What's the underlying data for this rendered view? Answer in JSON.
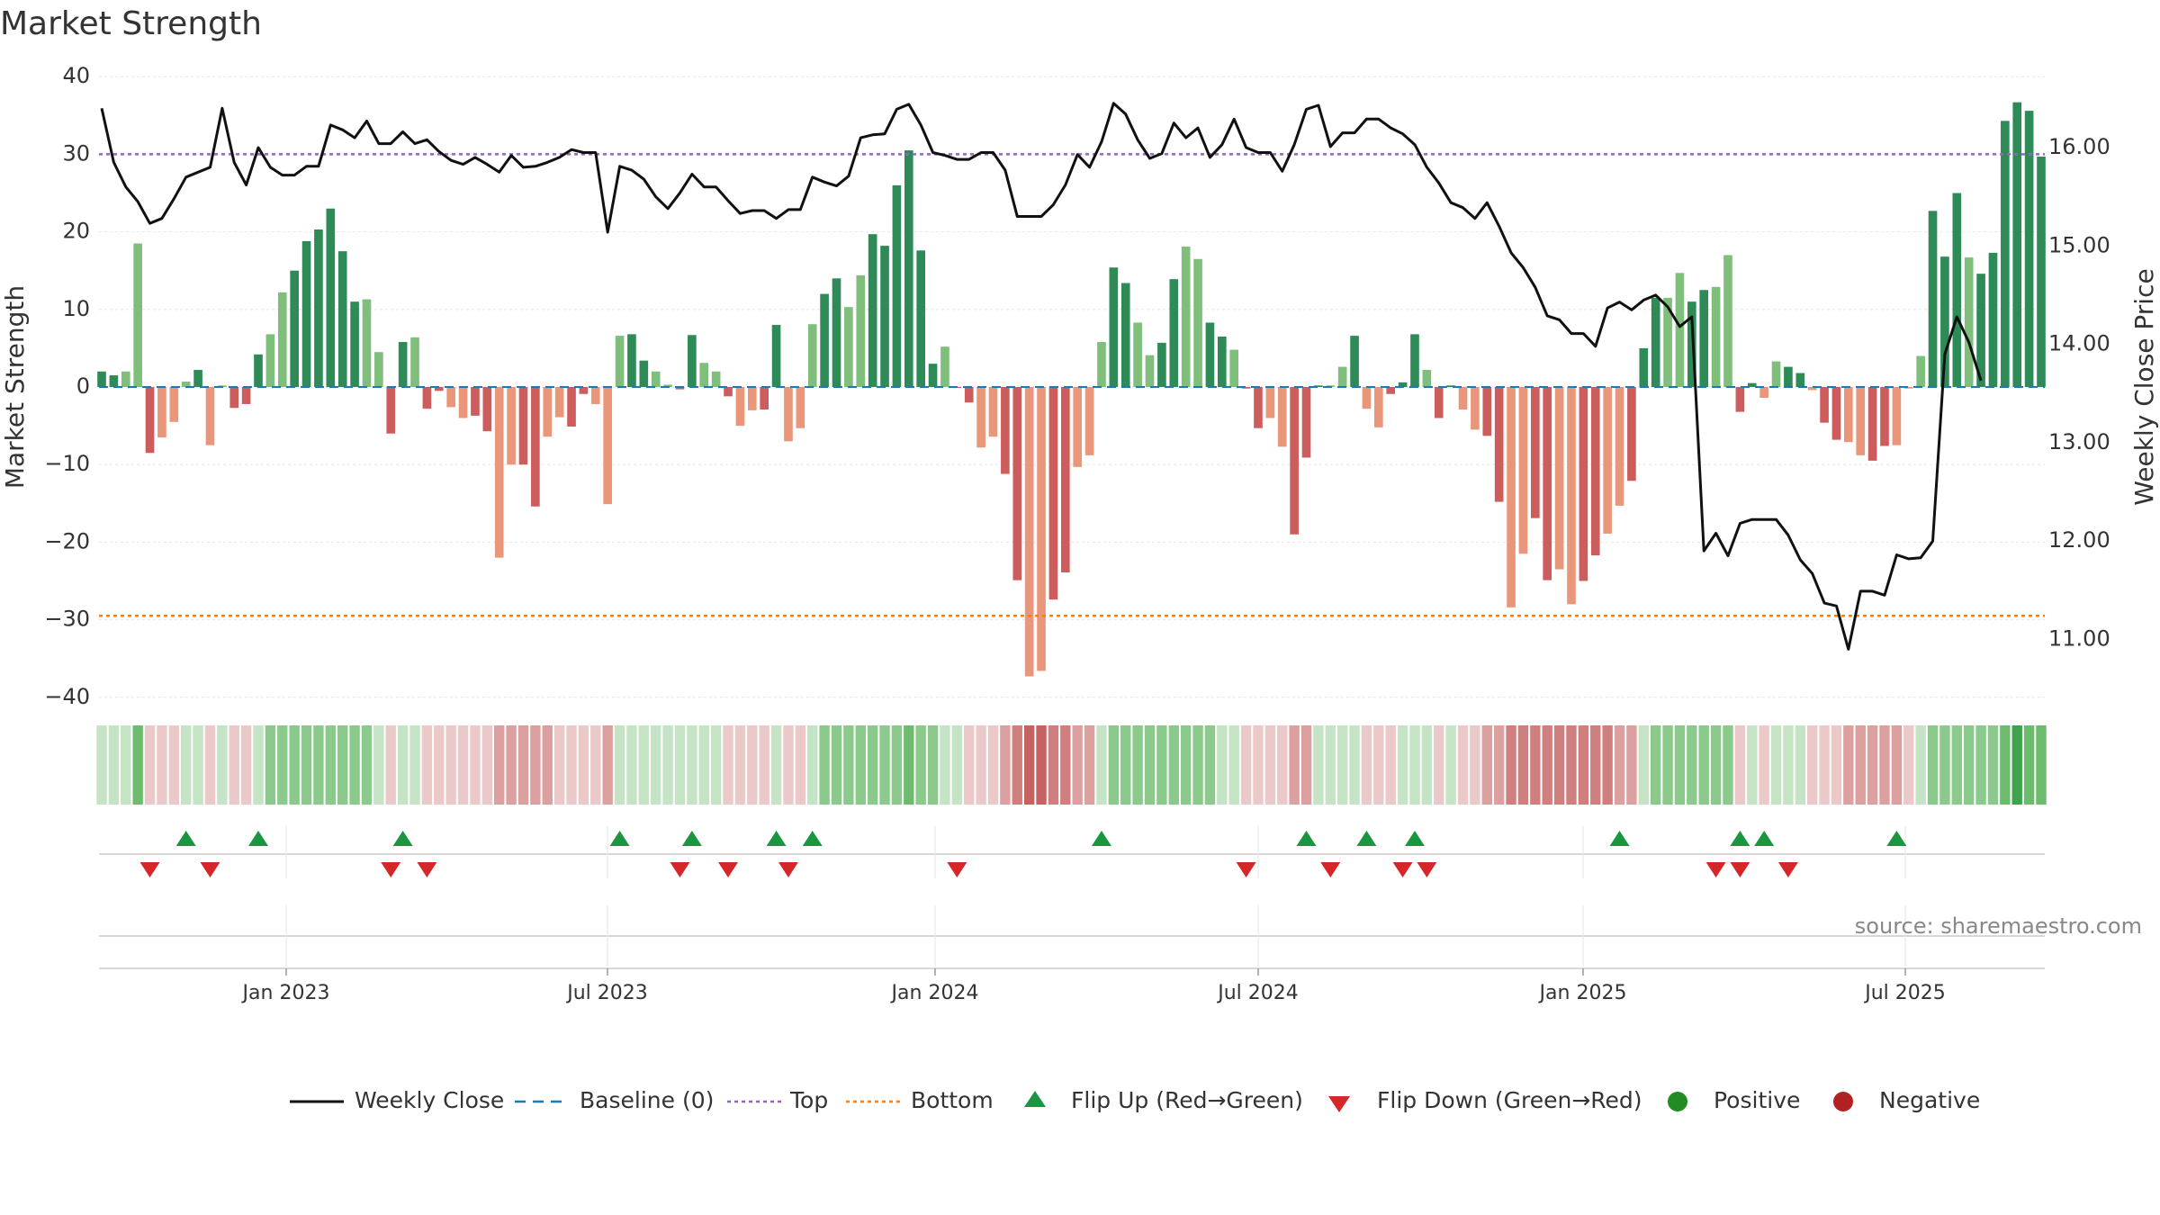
{
  "title": "Market Strength",
  "chart_data": {
    "type": "bar+line",
    "title": "Market Strength",
    "ylabel_left": "Market Strength",
    "ylabel_right": "Weekly Close Price",
    "ylim_left": [
      -40,
      40
    ],
    "ylim_right": [
      10.2,
      16.7
    ],
    "yticks_left": [
      "40",
      "30",
      "20",
      "10",
      "0",
      "−10",
      "−20",
      "−30",
      "−40"
    ],
    "yticks_right": [
      "16.00",
      "15.00",
      "14.00",
      "13.00",
      "12.00",
      "11.00"
    ],
    "xticks": [
      "Jan 2023",
      "Jul 2023",
      "Jan 2024",
      "Jul 2024",
      "Jan 2025",
      "Jul 2025"
    ],
    "top_level": 30,
    "bottom_level": -29.5,
    "baseline": 0,
    "source": "source: sharemaestro.com",
    "strength": [
      2,
      1.5,
      2,
      18.5,
      -8.5,
      -6.5,
      -4.5,
      0.7,
      2.2,
      -7.5,
      0.2,
      -2.7,
      -2.2,
      4.2,
      6.8,
      12.2,
      15,
      18.8,
      20.3,
      23,
      17.5,
      11,
      11.3,
      4.5,
      -6,
      5.8,
      6.4,
      -2.8,
      -0.5,
      -2.6,
      -4,
      -3.7,
      -5.7,
      -22,
      -10,
      -10,
      -15.4,
      -6.4,
      -3.9,
      -5.1,
      -0.9,
      -2.2,
      -15.1,
      6.6,
      6.8,
      3.4,
      2,
      0.3,
      -0.3,
      6.7,
      3.1,
      2,
      -1.2,
      -5,
      -3,
      -2.9,
      8,
      -7,
      -5.3,
      8.1,
      12,
      14,
      10.3,
      14.4,
      19.7,
      18.2,
      26,
      30.5,
      17.6,
      3,
      5.2,
      -0.1,
      -2,
      -7.8,
      -6.4,
      -11.2,
      -24.9,
      -37.3,
      -36.6,
      -27.4,
      -23.9,
      -10.3,
      -8.8,
      5.8,
      15.4,
      13.4,
      8.3,
      4.1,
      5.7,
      13.9,
      18.1,
      16.5,
      8.3,
      6.5,
      4.8,
      -0.2,
      -5.3,
      -4,
      -7.7,
      -19,
      -9.1,
      0.2,
      0.2,
      2.6,
      6.6,
      -2.8,
      -5.2,
      -0.9,
      0.6,
      6.8,
      2.2,
      -4,
      0.2,
      -2.9,
      -5.5,
      -6.3,
      -14.8,
      -28.4,
      -21.5,
      -16.9,
      -24.9,
      -23.5,
      -28,
      -25,
      -21.7,
      -18.9,
      -15.3,
      -12.1,
      5,
      11.5,
      11.5,
      14.7,
      11,
      12.5,
      12.9,
      17,
      -3.2,
      0.5,
      -1.4,
      3.3,
      2.6,
      1.8,
      -0.4,
      -4.6,
      -6.8,
      -7.1,
      -8.8,
      -9.5,
      -7.6,
      -7.5,
      -0.2,
      4,
      22.7,
      16.8,
      25,
      16.7,
      14.6,
      17.3,
      34.3,
      36.7,
      35.6,
      29.7
    ],
    "weekly_close": [
      16.4,
      15.85,
      15.6,
      15.45,
      15.23,
      15.28,
      15.48,
      15.7,
      15.75,
      15.8,
      16.4,
      15.85,
      15.62,
      16.0,
      15.8,
      15.72,
      15.72,
      15.81,
      15.81,
      16.23,
      16.18,
      16.1,
      16.27,
      16.04,
      16.04,
      16.16,
      16.04,
      16.08,
      15.96,
      15.87,
      15.83,
      15.9,
      15.83,
      15.75,
      15.92,
      15.8,
      15.81,
      15.85,
      15.9,
      15.98,
      15.95,
      15.95,
      15.14,
      15.81,
      15.77,
      15.68,
      15.5,
      15.38,
      15.54,
      15.73,
      15.6,
      15.6,
      15.46,
      15.33,
      15.36,
      15.36,
      15.28,
      15.37,
      15.37,
      15.7,
      15.65,
      15.61,
      15.71,
      16.1,
      16.13,
      16.14,
      16.39,
      16.44,
      16.23,
      15.95,
      15.92,
      15.88,
      15.88,
      15.95,
      15.95,
      15.77,
      15.3,
      15.3,
      15.3,
      15.42,
      15.62,
      15.93,
      15.8,
      16.06,
      16.45,
      16.34,
      16.08,
      15.89,
      15.94,
      16.25,
      16.1,
      16.2,
      15.9,
      16.03,
      16.29,
      16.0,
      15.95,
      15.95,
      15.76,
      16.03,
      16.39,
      16.43,
      16.01,
      16.15,
      16.15,
      16.29,
      16.29,
      16.2,
      16.14,
      16.03,
      15.8,
      15.64,
      15.44,
      15.39,
      15.28,
      15.44,
      15.2,
      14.93,
      14.78,
      14.58,
      14.29,
      14.25,
      14.11,
      14.11,
      13.98,
      14.37,
      14.43,
      14.35,
      14.45,
      14.5,
      14.38,
      14.18,
      14.28,
      11.9,
      12.08,
      11.85,
      12.18,
      12.22,
      12.22,
      12.22,
      12.06,
      11.81,
      11.67,
      11.37,
      11.34,
      10.9,
      11.49,
      11.49,
      11.45,
      11.86,
      11.82,
      11.83,
      12.0,
      13.9,
      14.28,
      14.02,
      13.63
    ],
    "regime_heat": [
      1,
      1,
      1,
      3,
      -1,
      -1,
      -1,
      1,
      1,
      -1,
      1,
      -1,
      -1,
      1,
      2,
      2,
      2,
      2,
      2,
      2,
      2,
      2,
      2,
      1,
      -1,
      1,
      1,
      -1,
      -1,
      -1,
      -1,
      -1,
      -1,
      -2,
      -2,
      -2,
      -2,
      -2,
      -1,
      -1,
      -1,
      -1,
      -2,
      1,
      1,
      1,
      1,
      1,
      1,
      1,
      1,
      1,
      -1,
      -1,
      -1,
      -1,
      1,
      -1,
      -1,
      1,
      2,
      2,
      2,
      2,
      2,
      2,
      2,
      3,
      2,
      2,
      1,
      1,
      -1,
      -1,
      -1,
      -2,
      -3,
      -4,
      -4,
      -3,
      -3,
      -2,
      -2,
      1,
      2,
      2,
      2,
      2,
      2,
      2,
      2,
      2,
      2,
      1,
      1,
      -1,
      -1,
      -1,
      -1,
      -2,
      -2,
      1,
      1,
      1,
      1,
      -1,
      -1,
      -1,
      1,
      1,
      1,
      -1,
      1,
      -1,
      -1,
      -2,
      -2,
      -3,
      -3,
      -3,
      -3,
      -3,
      -3,
      -3,
      -3,
      -3,
      -2,
      -2,
      1,
      2,
      2,
      2,
      2,
      2,
      2,
      2,
      -1,
      1,
      -1,
      1,
      1,
      1,
      -1,
      -1,
      -1,
      -2,
      -2,
      -2,
      -2,
      -2,
      -1,
      1,
      2,
      2,
      2,
      2,
      2,
      2,
      3,
      4,
      3,
      3
    ],
    "flip_up_index": [
      7,
      13,
      25,
      43,
      49,
      56,
      59,
      83,
      100,
      105,
      109,
      126,
      136,
      138,
      149
    ],
    "flip_down_index": [
      4,
      9,
      24,
      27,
      48,
      52,
      57,
      71,
      95,
      102,
      108,
      110,
      134,
      136,
      140
    ],
    "colors": {
      "pos_strong": "#2e8b57",
      "pos_light": "#7fbf7b",
      "neg_strong": "#cd5c5c",
      "neg_light": "#e9967a",
      "close_line": "#111111",
      "baseline": "#1f77b4",
      "top": "#9467bd",
      "bottom": "#ff7f0e",
      "flip_up": "#1a9641",
      "flip_down": "#d62728",
      "positive": "#228b22",
      "negative": "#b22222"
    }
  },
  "legend": {
    "weekly_close": "Weekly Close",
    "baseline": "Baseline (0)",
    "top": "Top",
    "bottom": "Bottom",
    "flip_up": "Flip Up (Red→Green)",
    "flip_down": "Flip Down (Green→Red)",
    "positive": "Positive",
    "negative": "Negative"
  }
}
